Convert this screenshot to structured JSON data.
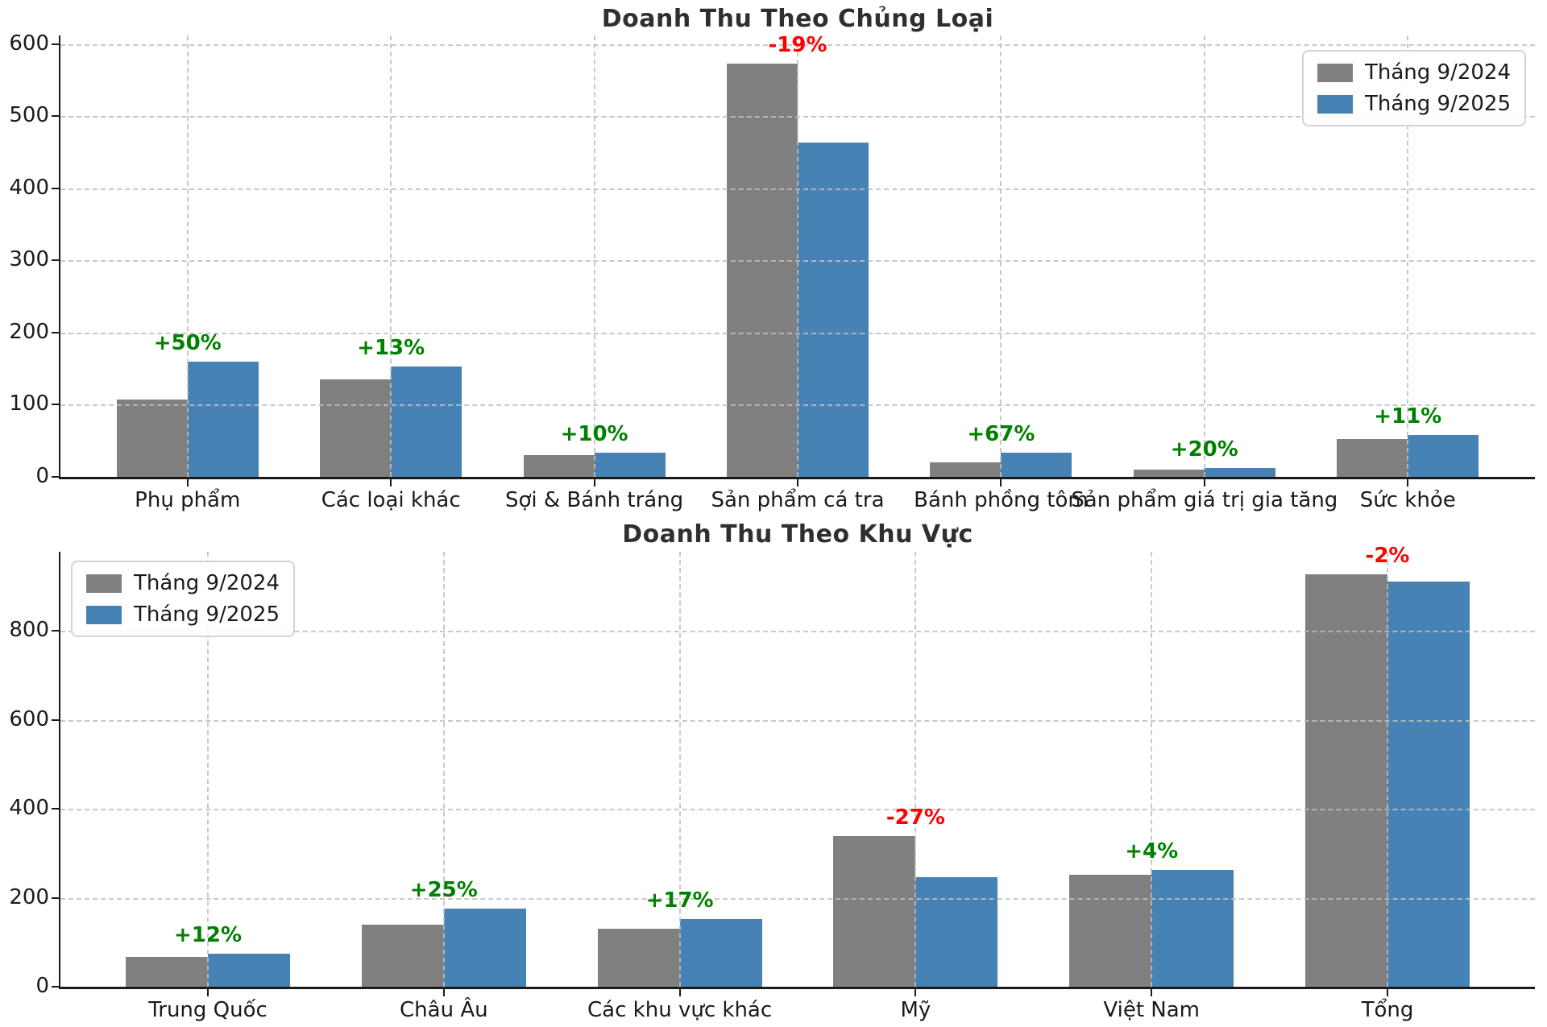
{
  "figure": {
    "background": "#ffffff"
  },
  "colors": {
    "series_2024": "#808080",
    "series_2025": "#4682b4",
    "positive_change": "#008000",
    "negative_change": "#ff0000",
    "title_text": "#2f2f2f",
    "tick_text": "#1a1a1a",
    "grid_line": "#bebebe",
    "axis_line": "#1a1a1a"
  },
  "chart_data": [
    {
      "type": "bar",
      "title": "Doanh Thu Theo Chủng Loại",
      "legend": [
        "Tháng 9/2024",
        "Tháng 9/2025"
      ],
      "legend_position": "top-right",
      "grid": "dashed-both-axes-above-bars",
      "xlabel": "",
      "ylabel": "",
      "ylim": [
        0,
        612
      ],
      "y_ticks": [
        0,
        100,
        200,
        300,
        400,
        500,
        600
      ],
      "categories": [
        "Phụ phẩm",
        "Các loại khác",
        "Sợi & Bánh tráng",
        "Sản phẩm cá tra",
        "Bánh phồng tôm",
        "Sản phẩm giá trị gia tăng",
        "Sức khỏe"
      ],
      "series": [
        {
          "name": "Tháng 9/2024",
          "color": "#808080",
          "values": [
            107,
            135,
            30,
            573,
            20,
            10,
            52
          ]
        },
        {
          "name": "Tháng 9/2025",
          "color": "#4682b4",
          "values": [
            160,
            153,
            33,
            463,
            33,
            12,
            58
          ]
        }
      ],
      "change_labels": [
        "+50%",
        "+13%",
        "+10%",
        "-19%",
        "+67%",
        "+20%",
        "+11%"
      ]
    },
    {
      "type": "bar",
      "title": "Doanh Thu Theo Khu Vực",
      "legend": [
        "Tháng 9/2024",
        "Tháng 9/2025"
      ],
      "legend_position": "top-left",
      "grid": "dashed-both-axes-above-bars",
      "xlabel": "",
      "ylabel": "",
      "ylim": [
        0,
        978
      ],
      "y_ticks": [
        0,
        200,
        400,
        600,
        800
      ],
      "categories": [
        "Trung Quốc",
        "Châu Âu",
        "Các khu vực khác",
        "Mỹ",
        "Việt Nam",
        "Tổng"
      ],
      "series": [
        {
          "name": "Tháng 9/2024",
          "color": "#808080",
          "values": [
            67,
            140,
            130,
            338,
            252,
            927
          ]
        },
        {
          "name": "Tháng 9/2025",
          "color": "#4682b4",
          "values": [
            75,
            175,
            152,
            247,
            262,
            911
          ]
        }
      ],
      "change_labels": [
        "+12%",
        "+25%",
        "+17%",
        "-27%",
        "+4%",
        "-2%"
      ]
    }
  ]
}
